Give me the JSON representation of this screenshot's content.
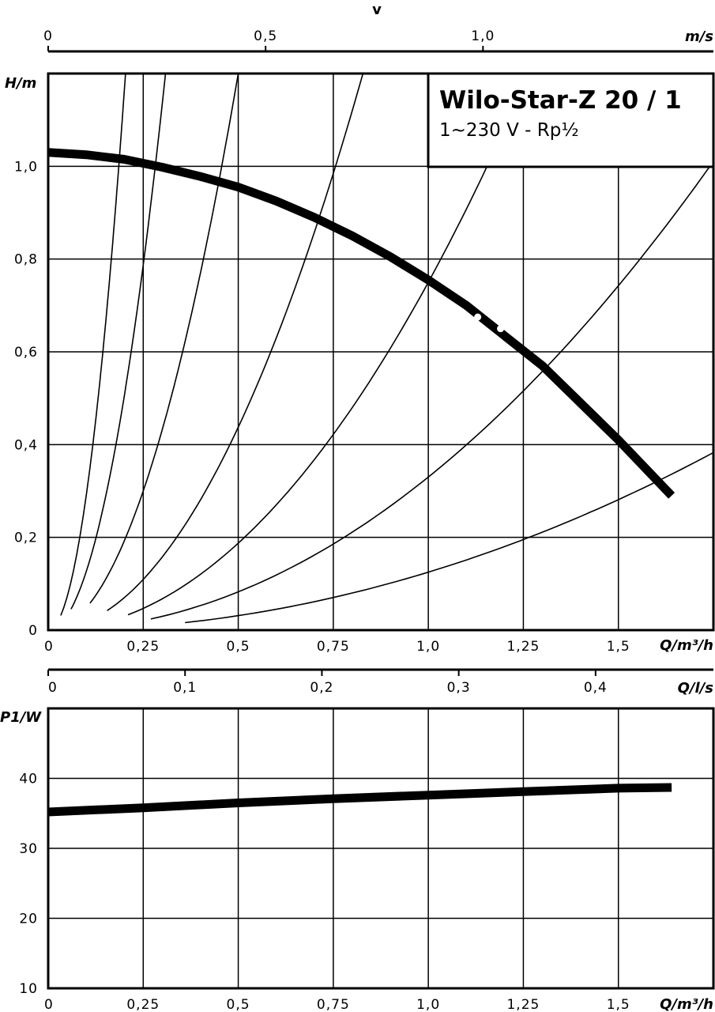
{
  "chart_data": [
    {
      "type": "line",
      "title": "Wilo-Star-Z 20 / 1",
      "subtitle": "1~230 V - Rp½",
      "ylabel": "H/m",
      "xlabel": "Q/m³/h",
      "xlim": [
        0,
        1.75
      ],
      "ylim": [
        0,
        1.2
      ],
      "x_ticks": [
        "0",
        "0,25",
        "0,5",
        "0,75",
        "1,0",
        "1,25",
        "1,5"
      ],
      "y_ticks": [
        "0",
        "0,2",
        "0,4",
        "0,6",
        "0,8",
        "1,0"
      ],
      "top_axis_v": {
        "label": "v",
        "unit": "m/s",
        "ticks": [
          "0",
          "0,5",
          "1,0"
        ],
        "max_value": 1.53
      },
      "secondary_x_axis": {
        "unit": "Q/l/s",
        "ticks": [
          "0",
          "0,1",
          "0,2",
          "0,3",
          "0,4"
        ],
        "max_value": 0.4861
      },
      "pump_curve": {
        "x": [
          0,
          0.1,
          0.2,
          0.3,
          0.4,
          0.5,
          0.6,
          0.7,
          0.8,
          0.9,
          1.0,
          1.1,
          1.2,
          1.3,
          1.4,
          1.5,
          1.64
        ],
        "y": [
          1.03,
          1.025,
          1.015,
          0.998,
          0.978,
          0.955,
          0.925,
          0.89,
          0.85,
          0.805,
          0.755,
          0.7,
          0.635,
          0.57,
          0.49,
          0.41,
          0.29
        ]
      },
      "system_curves": [
        {
          "k": 29,
          "x_from": 0.033,
          "x_to": 1.75
        },
        {
          "k": 12.6,
          "x_from": 0.06,
          "x_to": 1.75
        },
        {
          "k": 4.8,
          "x_from": 0.11,
          "x_to": 1.75
        },
        {
          "k": 1.75,
          "x_from": 0.155,
          "x_to": 1.75
        },
        {
          "k": 0.75,
          "x_from": 0.21,
          "x_to": 1.75
        },
        {
          "k": 0.33,
          "x_from": 0.27,
          "x_to": 1.75
        },
        {
          "k": 0.125,
          "x_from": 0.36,
          "x_to": 1.75
        }
      ]
    },
    {
      "type": "line",
      "ylabel": "P1/W",
      "xlabel": "Q/m³/h",
      "xlim": [
        0,
        1.75
      ],
      "ylim": [
        10,
        50
      ],
      "x_ticks": [
        "0",
        "0,25",
        "0,5",
        "0,75",
        "1,0",
        "1,25",
        "1,5"
      ],
      "y_ticks": [
        "10",
        "20",
        "30",
        "40"
      ],
      "power_curve": {
        "x": [
          0,
          0.25,
          0.5,
          0.75,
          1.0,
          1.25,
          1.5,
          1.64
        ],
        "y": [
          35.2,
          35.8,
          36.5,
          37.1,
          37.6,
          38.1,
          38.6,
          38.7
        ]
      }
    }
  ]
}
